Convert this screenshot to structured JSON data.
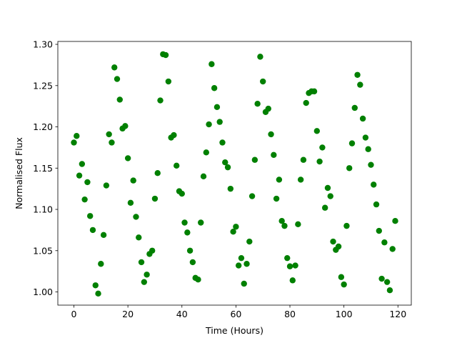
{
  "chart_data": {
    "type": "scatter",
    "x_label": "Time (Hours)",
    "y_label": "Normalised Flux",
    "color": "#008000",
    "x": [
      0,
      1,
      2,
      3,
      4,
      5,
      6,
      7,
      8,
      9,
      10,
      11,
      12,
      13,
      14,
      15,
      16,
      17,
      18,
      19,
      20,
      21,
      22,
      23,
      24,
      25,
      26,
      27,
      28,
      29,
      30,
      31,
      32,
      33,
      34,
      35,
      36,
      37,
      38,
      39,
      40,
      41,
      42,
      43,
      44,
      45,
      46,
      47,
      48,
      49,
      50,
      51,
      52,
      53,
      54,
      55,
      56,
      57,
      58,
      59,
      60,
      61,
      62,
      63,
      64,
      65,
      66,
      67,
      68,
      69,
      70,
      71,
      72,
      73,
      74,
      75,
      76,
      77,
      78,
      79,
      80,
      81,
      82,
      83,
      84,
      85,
      86,
      87,
      88,
      89,
      90,
      91,
      92,
      93,
      94,
      95,
      96,
      97,
      98,
      99,
      100,
      101,
      102,
      103,
      104,
      105,
      106,
      107,
      108,
      109,
      110,
      111,
      112,
      113,
      114,
      115,
      116,
      117,
      118,
      119
    ],
    "values": [
      1.181,
      1.189,
      1.141,
      1.155,
      1.112,
      1.133,
      1.092,
      1.075,
      1.008,
      0.998,
      1.034,
      1.069,
      1.129,
      1.191,
      1.181,
      1.272,
      1.258,
      1.233,
      1.198,
      1.201,
      1.162,
      1.108,
      1.135,
      1.091,
      1.066,
      1.036,
      1.012,
      1.021,
      1.046,
      1.05,
      1.113,
      1.144,
      1.232,
      1.288,
      1.287,
      1.255,
      1.187,
      1.19,
      1.153,
      1.122,
      1.119,
      1.084,
      1.072,
      1.05,
      1.036,
      1.017,
      1.015,
      1.084,
      1.14,
      1.169,
      1.203,
      1.276,
      1.247,
      1.224,
      1.206,
      1.181,
      1.157,
      1.151,
      1.125,
      1.073,
      1.079,
      1.032,
      1.041,
      1.01,
      1.034,
      1.061,
      1.116,
      1.16,
      1.228,
      1.285,
      1.255,
      1.218,
      1.222,
      1.191,
      1.166,
      1.113,
      1.136,
      1.086,
      1.08,
      1.041,
      1.031,
      1.014,
      1.032,
      1.082,
      1.136,
      1.16,
      1.229,
      1.241,
      1.243,
      1.243,
      1.195,
      1.158,
      1.175,
      1.102,
      1.126,
      1.116,
      1.061,
      1.051,
      1.055,
      1.018,
      1.009,
      1.08,
      1.15,
      1.18,
      1.223,
      1.263,
      1.251,
      1.21,
      1.187,
      1.173,
      1.154,
      1.13,
      1.106,
      1.074,
      1.016,
      1.06,
      1.012,
      1.002,
      1.052,
      1.086
    ],
    "xlim": [
      -5.95,
      124.95
    ],
    "xticks": [
      0,
      20,
      40,
      60,
      80,
      100,
      120
    ],
    "ylim": [
      0.984,
      1.3035
    ],
    "yticks": [
      {
        "value": 1.0,
        "label": "1.00"
      },
      {
        "value": 1.05,
        "label": "1.05"
      },
      {
        "value": 1.1,
        "label": "1.10"
      },
      {
        "value": 1.15,
        "label": "1.15"
      },
      {
        "value": 1.2,
        "label": "1.20"
      },
      {
        "value": 1.25,
        "label": "1.25"
      },
      {
        "value": 1.3,
        "label": "1.30"
      }
    ]
  }
}
